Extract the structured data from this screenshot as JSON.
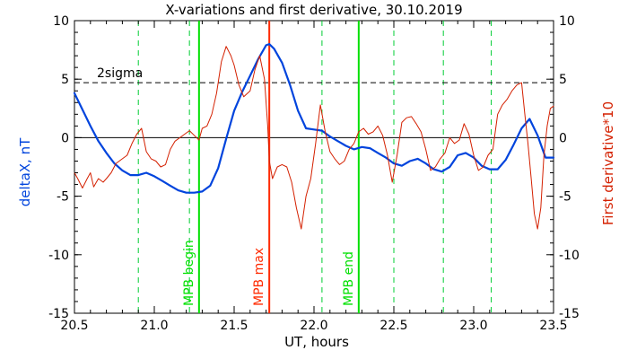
{
  "chart_data": {
    "type": "line",
    "title": "X-variations and first derivative, 30.10.2019",
    "xlabel": "UT, hours",
    "ylabel": "deltaX, nT",
    "y2label": "First derivative*10",
    "xlim": [
      20.5,
      23.5
    ],
    "ylim": [
      -15,
      10
    ],
    "y2lim": [
      -15,
      10
    ],
    "xticks": [
      20.5,
      21.0,
      21.5,
      22.0,
      22.5,
      23.0,
      23.5
    ],
    "xtick_labels": [
      "20.5",
      "21.0",
      "21.5",
      "22.0",
      "22.5",
      "23.0",
      "23.5"
    ],
    "yticks": [
      -15,
      -10,
      -5,
      0,
      5,
      10
    ],
    "ytick_labels": [
      "-15",
      "-10",
      "-5",
      "0",
      "5",
      "10"
    ],
    "y2ticks": [
      -15,
      -10,
      -5,
      0,
      5,
      10
    ],
    "y2tick_labels": [
      "-15",
      "-10",
      "-5",
      "0",
      "5",
      "10"
    ],
    "zero_line": 0,
    "sigma_line": {
      "label": "2sigma",
      "value": 4.7
    },
    "dashed_verticals": [
      20.9,
      21.22,
      22.05,
      22.5,
      22.81,
      23.11
    ],
    "markers": [
      {
        "label": "MPB begin",
        "x": 21.28,
        "color": "#00e000"
      },
      {
        "label": "MPB max",
        "x": 21.72,
        "color": "#ff2a00"
      },
      {
        "label": "MPB end",
        "x": 22.28,
        "color": "#00e000"
      }
    ],
    "series": [
      {
        "name": "deltaX, nT",
        "axis": "left",
        "color": "#0044dd",
        "x": [
          20.5,
          20.55,
          20.6,
          20.65,
          20.7,
          20.75,
          20.8,
          20.85,
          20.9,
          20.95,
          21.0,
          21.05,
          21.1,
          21.15,
          21.2,
          21.25,
          21.3,
          21.35,
          21.4,
          21.45,
          21.5,
          21.55,
          21.6,
          21.65,
          21.7,
          21.72,
          21.75,
          21.8,
          21.85,
          21.9,
          21.95,
          22.0,
          22.05,
          22.1,
          22.15,
          22.2,
          22.25,
          22.3,
          22.35,
          22.4,
          22.45,
          22.5,
          22.55,
          22.6,
          22.65,
          22.7,
          22.75,
          22.8,
          22.85,
          22.9,
          22.95,
          23.0,
          23.05,
          23.1,
          23.15,
          23.2,
          23.25,
          23.3,
          23.35,
          23.4,
          23.45,
          23.5
        ],
        "values": [
          3.8,
          2.4,
          1.0,
          -0.3,
          -1.3,
          -2.2,
          -2.8,
          -3.2,
          -3.2,
          -3.0,
          -3.3,
          -3.7,
          -4.1,
          -4.5,
          -4.7,
          -4.7,
          -4.6,
          -4.1,
          -2.6,
          -0.1,
          2.3,
          3.9,
          5.3,
          6.7,
          7.9,
          8.0,
          7.6,
          6.4,
          4.5,
          2.3,
          0.8,
          0.7,
          0.6,
          0.1,
          -0.3,
          -0.7,
          -1.0,
          -0.8,
          -0.9,
          -1.3,
          -1.7,
          -2.2,
          -2.4,
          -2.0,
          -1.8,
          -2.2,
          -2.7,
          -2.9,
          -2.5,
          -1.5,
          -1.3,
          -1.7,
          -2.4,
          -2.7,
          -2.7,
          -1.9,
          -0.6,
          0.8,
          1.6,
          0.2,
          -1.7,
          -1.7
        ]
      },
      {
        "name": "First derivative*10",
        "axis": "right",
        "color": "#d42000",
        "x": [
          20.5,
          20.52,
          20.55,
          20.58,
          20.6,
          20.62,
          20.65,
          20.68,
          20.7,
          20.73,
          20.76,
          20.8,
          20.83,
          20.86,
          20.89,
          20.92,
          20.95,
          20.98,
          21.01,
          21.04,
          21.07,
          21.1,
          21.13,
          21.16,
          21.19,
          21.22,
          21.25,
          21.28,
          21.3,
          21.33,
          21.36,
          21.39,
          21.42,
          21.45,
          21.48,
          21.5,
          21.53,
          21.56,
          21.6,
          21.63,
          21.66,
          21.69,
          21.71,
          21.72,
          21.74,
          21.77,
          21.8,
          21.83,
          21.86,
          21.89,
          21.92,
          21.95,
          21.98,
          22.01,
          22.04,
          22.07,
          22.1,
          22.13,
          22.16,
          22.19,
          22.22,
          22.25,
          22.28,
          22.31,
          22.34,
          22.37,
          22.4,
          22.43,
          22.46,
          22.49,
          22.52,
          22.55,
          22.58,
          22.61,
          22.64,
          22.67,
          22.7,
          22.73,
          22.76,
          22.79,
          22.82,
          22.85,
          22.88,
          22.91,
          22.94,
          22.97,
          23.0,
          23.03,
          23.06,
          23.09,
          23.12,
          23.15,
          23.18,
          23.21,
          23.24,
          23.27,
          23.3,
          23.32,
          23.34,
          23.36,
          23.38,
          23.4,
          23.42,
          23.44,
          23.46,
          23.48,
          23.5
        ],
        "values": [
          -3.0,
          -3.5,
          -4.3,
          -3.5,
          -3.0,
          -4.2,
          -3.5,
          -3.8,
          -3.5,
          -3.0,
          -2.2,
          -1.8,
          -1.5,
          -0.5,
          0.3,
          0.8,
          -1.2,
          -1.8,
          -2.0,
          -2.5,
          -2.3,
          -1.0,
          -0.3,
          0.0,
          0.3,
          0.6,
          0.2,
          -0.2,
          0.8,
          1.0,
          2.0,
          3.8,
          6.5,
          7.8,
          7.0,
          6.2,
          4.5,
          3.5,
          4.0,
          5.8,
          7.0,
          5.0,
          1.0,
          -2.0,
          -3.5,
          -2.5,
          -2.3,
          -2.5,
          -3.8,
          -6.0,
          -7.8,
          -5.0,
          -3.5,
          -0.5,
          2.8,
          0.5,
          -1.2,
          -1.8,
          -2.3,
          -2.0,
          -1.0,
          -0.5,
          0.5,
          0.8,
          0.3,
          0.5,
          1.0,
          0.2,
          -1.5,
          -3.8,
          -1.5,
          1.3,
          1.7,
          1.8,
          1.2,
          0.5,
          -1.0,
          -2.8,
          -2.5,
          -1.8,
          -1.3,
          0.0,
          -0.5,
          -0.2,
          1.2,
          0.3,
          -1.5,
          -2.8,
          -2.5,
          -1.5,
          -1.0,
          2.0,
          2.8,
          3.3,
          4.0,
          4.5,
          4.7,
          2.0,
          -0.5,
          -3.5,
          -6.5,
          -7.8,
          -6.0,
          -1.5,
          1.0,
          2.5,
          2.7
        ]
      }
    ],
    "grid": false
  }
}
